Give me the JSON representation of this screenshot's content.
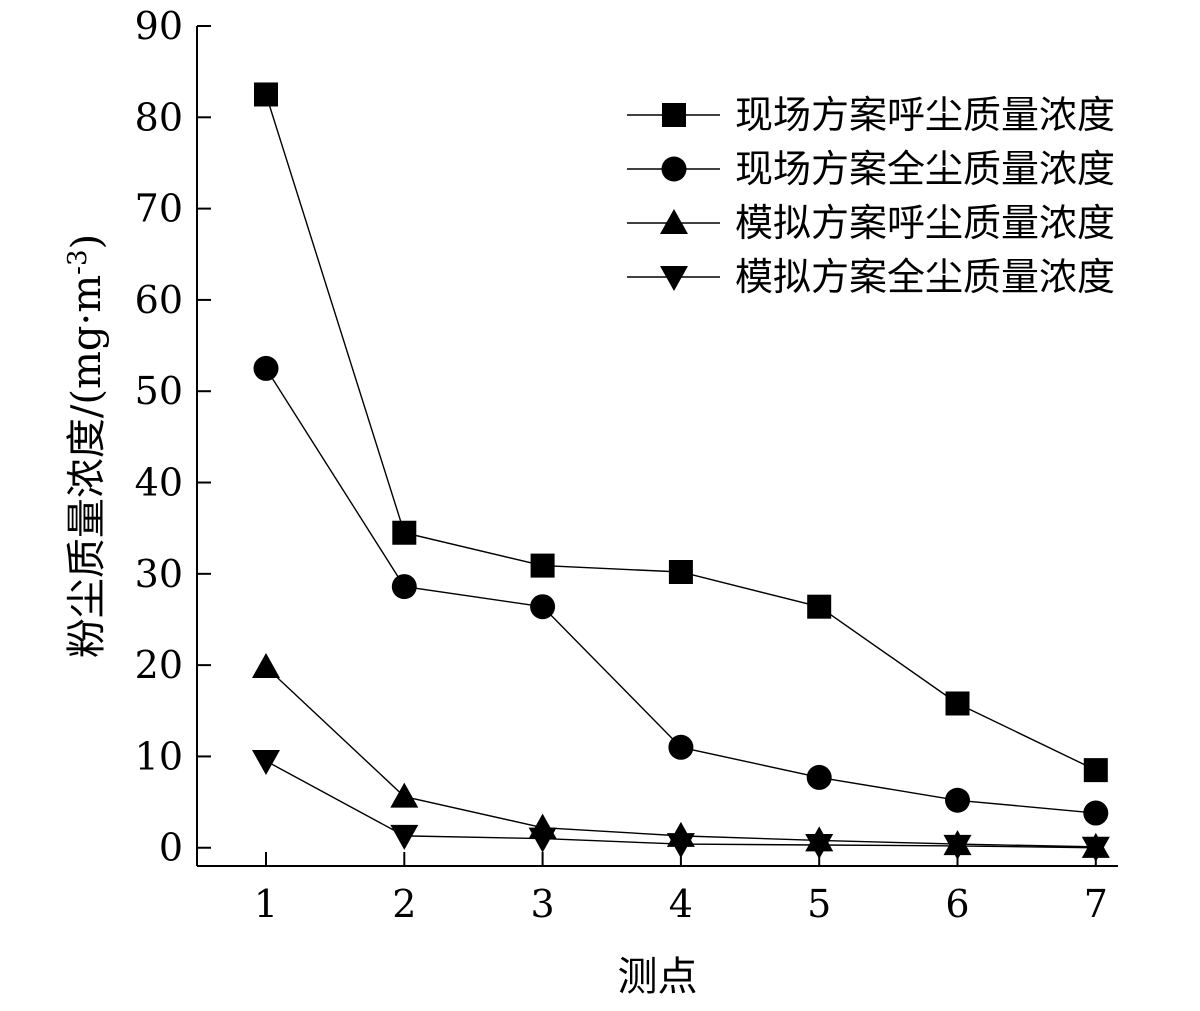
{
  "chart_data": {
    "type": "line",
    "title": "",
    "xlabel": "测点",
    "ylabel": "粉尘质量浓度/(mg·m",
    "ylabel_superscript": "-3",
    "ylabel_close": ")",
    "categories": [
      "1",
      "2",
      "3",
      "4",
      "5",
      "6",
      "7"
    ],
    "x": [
      1,
      2,
      3,
      4,
      5,
      6,
      7
    ],
    "xlim": [
      0.5,
      7
    ],
    "ylim": [
      -2,
      90
    ],
    "y_ticks": [
      0,
      10,
      20,
      30,
      40,
      50,
      60,
      70,
      80,
      90
    ],
    "x_tick_labels": [
      "1",
      "2",
      "3",
      "4",
      "5",
      "6",
      "7"
    ],
    "y_tick_labels": [
      "0",
      "10",
      "20",
      "30",
      "40",
      "50",
      "60",
      "70",
      "80",
      "90"
    ],
    "grid": false,
    "legend_position": "top-right",
    "series": [
      {
        "name": "现场方案呼尘质量浓度",
        "marker": "square",
        "color": "#000000",
        "values": [
          82.5,
          34.5,
          30.9,
          30.2,
          26.4,
          15.8,
          8.5
        ]
      },
      {
        "name": "现场方案全尘质量浓度",
        "marker": "circle",
        "color": "#000000",
        "values": [
          52.5,
          28.6,
          26.4,
          11.0,
          7.7,
          5.2,
          3.8
        ]
      },
      {
        "name": "模拟方案呼尘质量浓度",
        "marker": "triangle-up",
        "color": "#000000",
        "values": [
          19.8,
          5.6,
          2.2,
          1.3,
          0.8,
          0.4,
          0.1
        ]
      },
      {
        "name": "模拟方案全尘质量浓度",
        "marker": "triangle-down",
        "color": "#000000",
        "values": [
          9.5,
          1.3,
          1.0,
          0.4,
          0.3,
          0.2,
          0.0
        ]
      }
    ]
  }
}
